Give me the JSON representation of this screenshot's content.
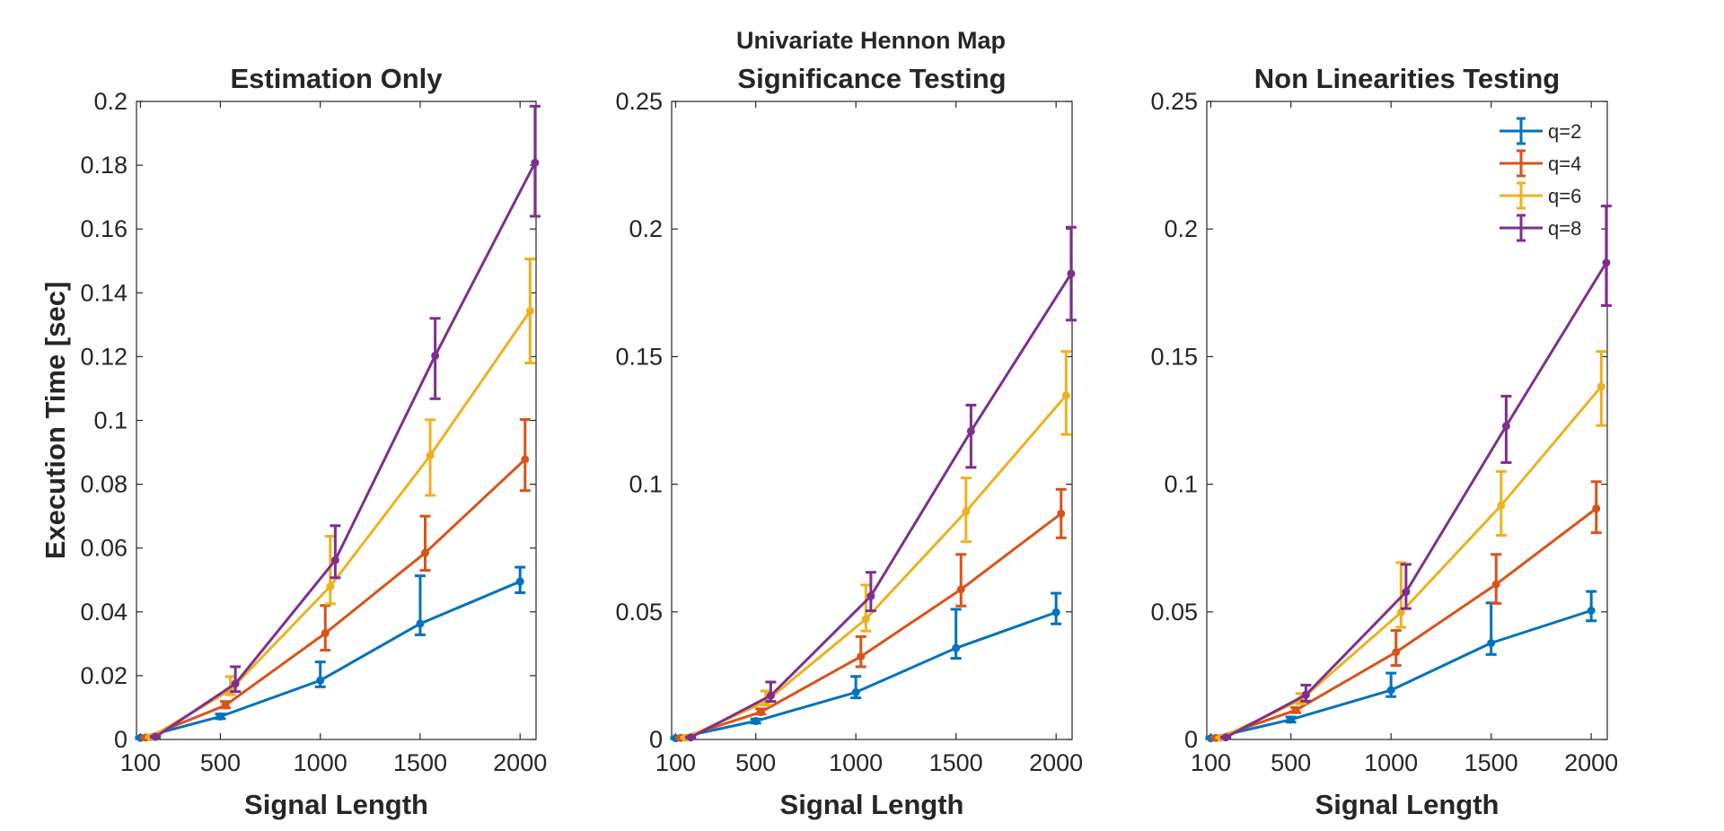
{
  "figure": {
    "suptitle": "Univariate Hennon Map"
  },
  "chart_data": [
    {
      "type": "line",
      "title": "Estimation Only",
      "xlabel": "Signal Length",
      "ylabel": "Execution Time [sec]",
      "xlim": [
        80,
        2080
      ],
      "ylim": [
        0,
        0.2
      ],
      "xticks": [
        100,
        500,
        1000,
        1500,
        2000
      ],
      "yticks": [
        0,
        0.02,
        0.04,
        0.06,
        0.08,
        0.1,
        0.12,
        0.14,
        0.16,
        0.18,
        0.2
      ],
      "ytick_labels": [
        "0",
        "0.02",
        "0.04",
        "0.06",
        "0.08",
        "0.1",
        "0.12",
        "0.14",
        "0.16",
        "0.18",
        "0.2"
      ],
      "grid": false,
      "series": [
        {
          "name": "q=2",
          "color": "#0072BD",
          "x": [
            100,
            500,
            1000,
            1500,
            2000
          ],
          "y": [
            0.0005,
            0.0072,
            0.0185,
            0.0363,
            0.0495
          ],
          "err_low": [
            0.0002,
            0.0007,
            0.002,
            0.0035,
            0.0035
          ],
          "err_high": [
            0.0002,
            0.0008,
            0.0058,
            0.015,
            0.0045
          ]
        },
        {
          "name": "q=4",
          "color": "#D95319",
          "x": [
            125,
            525,
            1025,
            1525,
            2025
          ],
          "y": [
            0.0006,
            0.0107,
            0.0333,
            0.0585,
            0.0878
          ],
          "err_low": [
            0.0002,
            0.0008,
            0.0053,
            0.0055,
            0.0098
          ],
          "err_high": [
            0.0002,
            0.0012,
            0.0087,
            0.0115,
            0.0125
          ]
        },
        {
          "name": "q=6",
          "color": "#EDB120",
          "x": [
            150,
            550,
            1050,
            1550,
            2050
          ],
          "y": [
            0.0007,
            0.0155,
            0.048,
            0.089,
            0.1343
          ],
          "err_low": [
            0.0002,
            0.0015,
            0.0055,
            0.0125,
            0.0163
          ],
          "err_high": [
            0.0002,
            0.0042,
            0.0157,
            0.0112,
            0.0163
          ]
        },
        {
          "name": "q=8",
          "color": "#7E2F8E",
          "x": [
            175,
            575,
            1075,
            1575,
            2075
          ],
          "y": [
            0.0008,
            0.0175,
            0.0562,
            0.1203,
            0.1808
          ],
          "err_low": [
            0.0002,
            0.0025,
            0.0055,
            0.0135,
            0.0168
          ],
          "err_high": [
            0.0002,
            0.0053,
            0.0108,
            0.0117,
            0.0177
          ]
        }
      ]
    },
    {
      "type": "line",
      "title": "Significance Testing",
      "xlabel": "Signal Length",
      "ylabel": "",
      "xlim": [
        80,
        2080
      ],
      "ylim": [
        0,
        0.25
      ],
      "xticks": [
        100,
        500,
        1000,
        1500,
        2000
      ],
      "yticks": [
        0,
        0.05,
        0.1,
        0.15,
        0.2,
        0.25
      ],
      "ytick_labels": [
        "0",
        "0.05",
        "0.1",
        "0.15",
        "0.2",
        "0.25"
      ],
      "grid": false,
      "series": [
        {
          "name": "q=2",
          "color": "#0072BD",
          "x": [
            100,
            500,
            1000,
            1500,
            2000
          ],
          "y": [
            0.0005,
            0.0072,
            0.0185,
            0.0358,
            0.0498
          ],
          "err_low": [
            0.0002,
            0.0008,
            0.0022,
            0.004,
            0.0045
          ],
          "err_high": [
            0.0002,
            0.0008,
            0.0062,
            0.0152,
            0.0075
          ]
        },
        {
          "name": "q=4",
          "color": "#D95319",
          "x": [
            125,
            525,
            1025,
            1525,
            2025
          ],
          "y": [
            0.0006,
            0.0107,
            0.0325,
            0.0588,
            0.0885
          ],
          "err_low": [
            0.0002,
            0.0008,
            0.004,
            0.0065,
            0.0095
          ],
          "err_high": [
            0.0002,
            0.0013,
            0.0078,
            0.0137,
            0.0095
          ]
        },
        {
          "name": "q=6",
          "color": "#EDB120",
          "x": [
            150,
            550,
            1050,
            1550,
            2050
          ],
          "y": [
            0.0007,
            0.0148,
            0.0472,
            0.0893,
            0.1348
          ],
          "err_low": [
            0.0002,
            0.0013,
            0.0047,
            0.0118,
            0.0153
          ],
          "err_high": [
            0.0002,
            0.0042,
            0.0133,
            0.0132,
            0.0172
          ]
        },
        {
          "name": "q=8",
          "color": "#7E2F8E",
          "x": [
            175,
            575,
            1075,
            1575,
            2075
          ],
          "y": [
            0.0008,
            0.0172,
            0.0562,
            0.1208,
            0.1825
          ],
          "err_low": [
            0.0002,
            0.0023,
            0.0058,
            0.0142,
            0.0182
          ],
          "err_high": [
            0.0002,
            0.0053,
            0.0093,
            0.0102,
            0.0182
          ]
        }
      ]
    },
    {
      "type": "line",
      "title": "Non Linearities Testing",
      "xlabel": "Signal Length",
      "ylabel": "",
      "xlim": [
        80,
        2080
      ],
      "ylim": [
        0,
        0.25
      ],
      "xticks": [
        100,
        500,
        1000,
        1500,
        2000
      ],
      "yticks": [
        0,
        0.05,
        0.1,
        0.15,
        0.2,
        0.25
      ],
      "ytick_labels": [
        "0",
        "0.05",
        "0.1",
        "0.15",
        "0.2",
        "0.25"
      ],
      "grid": false,
      "legend": "top-right",
      "series": [
        {
          "name": "q=2",
          "color": "#0072BD",
          "x": [
            100,
            500,
            1000,
            1500,
            2000
          ],
          "y": [
            0.0005,
            0.0078,
            0.0193,
            0.0378,
            0.0505
          ],
          "err_low": [
            0.0002,
            0.001,
            0.0025,
            0.0045,
            0.004
          ],
          "err_high": [
            0.0002,
            0.001,
            0.0067,
            0.0157,
            0.0075
          ]
        },
        {
          "name": "q=4",
          "color": "#D95319",
          "x": [
            125,
            525,
            1025,
            1525,
            2025
          ],
          "y": [
            0.0006,
            0.0115,
            0.0342,
            0.0608,
            0.0905
          ],
          "err_low": [
            0.0002,
            0.001,
            0.0052,
            0.0075,
            0.0095
          ],
          "err_high": [
            0.0002,
            0.001,
            0.0085,
            0.0117,
            0.0105
          ]
        },
        {
          "name": "q=6",
          "color": "#EDB120",
          "x": [
            150,
            550,
            1050,
            1550,
            2050
          ],
          "y": [
            0.0007,
            0.0155,
            0.0498,
            0.0917,
            0.1383
          ],
          "err_low": [
            0.0002,
            0.0015,
            0.0058,
            0.0117,
            0.0153
          ],
          "err_high": [
            0.0002,
            0.0025,
            0.0195,
            0.0133,
            0.0137
          ]
        },
        {
          "name": "q=8",
          "color": "#7E2F8E",
          "x": [
            175,
            575,
            1075,
            1575,
            2075
          ],
          "y": [
            0.0008,
            0.0175,
            0.0578,
            0.1228,
            0.1868
          ],
          "err_low": [
            0.0002,
            0.0025,
            0.0065,
            0.0143,
            0.0168
          ],
          "err_high": [
            0.0002,
            0.0038,
            0.0108,
            0.0117,
            0.0222
          ]
        }
      ]
    }
  ]
}
